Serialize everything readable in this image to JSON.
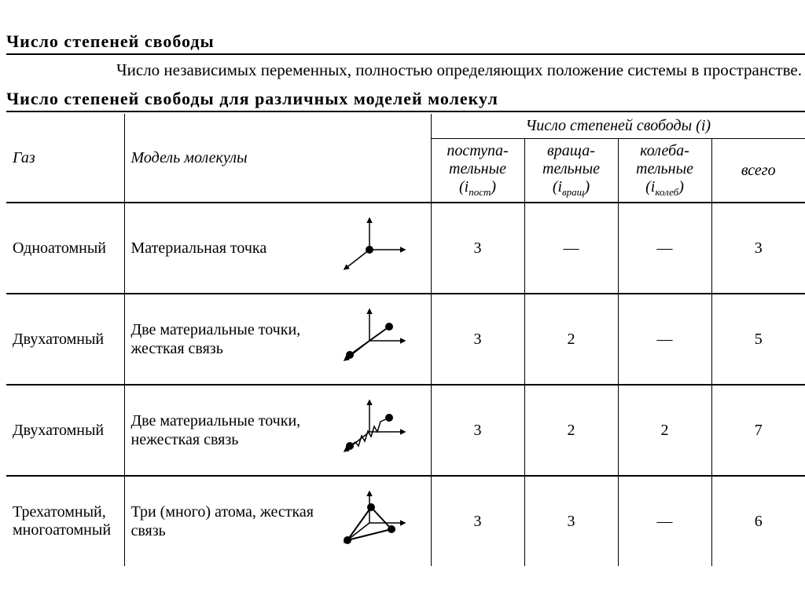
{
  "title": "Число степеней свободы",
  "definition": "Число независимых переменных, полностью определяющих положение системы в пространстве.",
  "section": "Число степеней свободы для различных моделей молекул",
  "dash": "—",
  "headers": {
    "gas": "Газ",
    "model": "Модель молекулы",
    "group": "Число степеней свободы (i)",
    "trans": "поступа-тельные",
    "trans_sym": "(i",
    "trans_sub": "пост",
    "trans_close": ")",
    "rot": "враща-тельные",
    "rot_sym": "(i",
    "rot_sub": "вращ",
    "rot_close": ")",
    "vib": "колеба-тельные",
    "vib_sym": "(i",
    "vib_sub": "колеб",
    "vib_close": ")",
    "total": "всего"
  },
  "rows": [
    {
      "gas": "Одноатомный",
      "model": "Материальная точка",
      "diagram": "mono",
      "trans": "3",
      "rot": "—",
      "vib": "—",
      "total": "3"
    },
    {
      "gas": "Двухатомный",
      "model": "Две материальные точки, жесткая связь",
      "diagram": "di-rigid",
      "trans": "3",
      "rot": "2",
      "vib": "—",
      "total": "5"
    },
    {
      "gas": "Двухатомный",
      "model": "Две материальные точки, нежесткая связь",
      "diagram": "di-spring",
      "trans": "3",
      "rot": "2",
      "vib": "2",
      "total": "7"
    },
    {
      "gas": "Трехатомный, многоатомный",
      "model": "Три (много) атома, жесткая связь",
      "diagram": "tri",
      "trans": "3",
      "rot": "3",
      "vib": "—",
      "total": "6"
    }
  ],
  "style": {
    "bg": "#ffffff",
    "fg": "#000000",
    "border": "#000000",
    "font": "Times New Roman",
    "title_fontsize": 22,
    "body_fontsize": 20,
    "diagram": {
      "axis_stroke": "#000000",
      "axis_width": 1.5,
      "atom_fill": "#000000",
      "atom_radius": 5,
      "arrowhead": "black"
    }
  }
}
